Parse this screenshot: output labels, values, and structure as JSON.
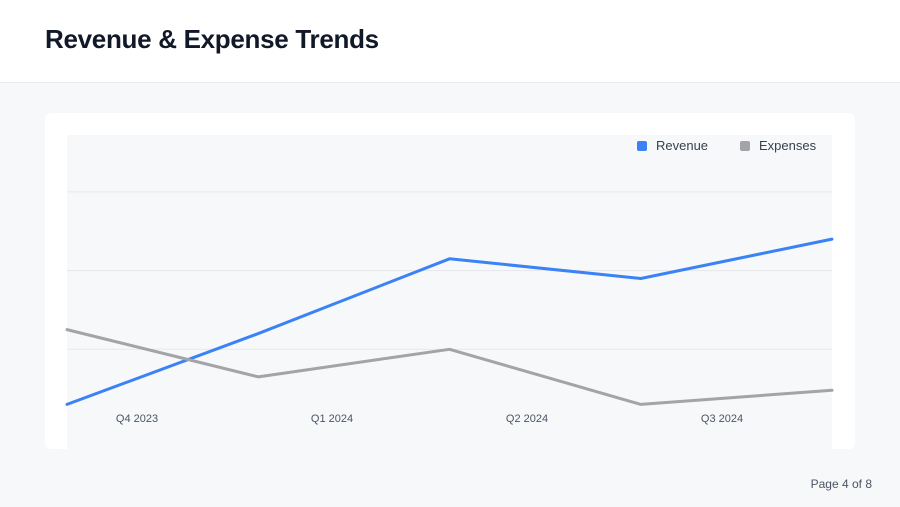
{
  "header": {
    "title": "Revenue & Expense Trends"
  },
  "footer": {
    "page_label": "Page 4 of 8"
  },
  "colors": {
    "revenue": "#3b82f6",
    "expenses": "#a3a3a8",
    "grid": "#e5e7eb",
    "plot_bg": "#f7f8fa"
  },
  "chart_data": {
    "type": "line",
    "title": "",
    "xlabel": "",
    "ylabel": "",
    "categories": [
      "Q4 2023",
      "Q1 2024",
      "Q2 2024",
      "Q3 2024",
      ""
    ],
    "ylim": [
      0,
      4
    ],
    "grid": true,
    "legend": "top-right",
    "series": [
      {
        "name": "Revenue",
        "color": "#3b82f6",
        "values": [
          0.3,
          1.2,
          2.15,
          1.9,
          2.4
        ]
      },
      {
        "name": "Expenses",
        "color": "#a3a3a8",
        "values": [
          1.25,
          0.65,
          1.0,
          0.3,
          0.48
        ]
      }
    ]
  }
}
